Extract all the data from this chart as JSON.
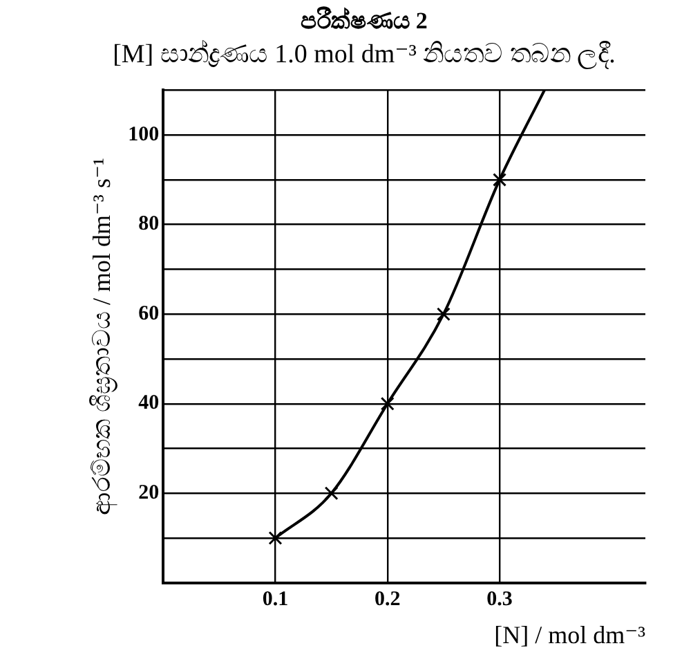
{
  "chart_data": {
    "type": "scatter",
    "title": "පරීක්ෂණය 2",
    "subtitle": "[M] සාන්ද්‍රණය 1.0 mol dm⁻³ නියතව තබන ලදී.",
    "xlabel": "[N] / mol dm⁻³",
    "ylabel": "ආරම්භක ශීඝ්‍රතාවය / mol dm⁻³ s⁻¹",
    "xlim": [
      0,
      0.43
    ],
    "ylim": [
      0,
      110
    ],
    "xticks": [
      0.1,
      0.2,
      0.3
    ],
    "yticks": [
      {
        "value": 10,
        "label": null
      },
      20,
      {
        "value": 30,
        "label": null
      },
      40,
      {
        "value": 50,
        "label": null
      },
      60,
      {
        "value": 70,
        "label": null
      },
      80,
      {
        "value": 90,
        "label": null
      },
      100,
      {
        "value": 110,
        "label": null
      }
    ],
    "grid": true,
    "legend": false,
    "series": [
      {
        "type": "line",
        "color": "#000000",
        "marker": "none",
        "x": [
          0.1,
          0.15,
          0.2,
          0.25,
          0.3,
          0.34
        ],
        "values": [
          10,
          20,
          40,
          60,
          90,
          110
        ]
      },
      {
        "color": "#000000",
        "marker": "cross",
        "x": [
          0.1,
          0.15,
          0.2,
          0.25,
          0.3
        ],
        "values": [
          10,
          20,
          40,
          60,
          90
        ]
      }
    ]
  }
}
